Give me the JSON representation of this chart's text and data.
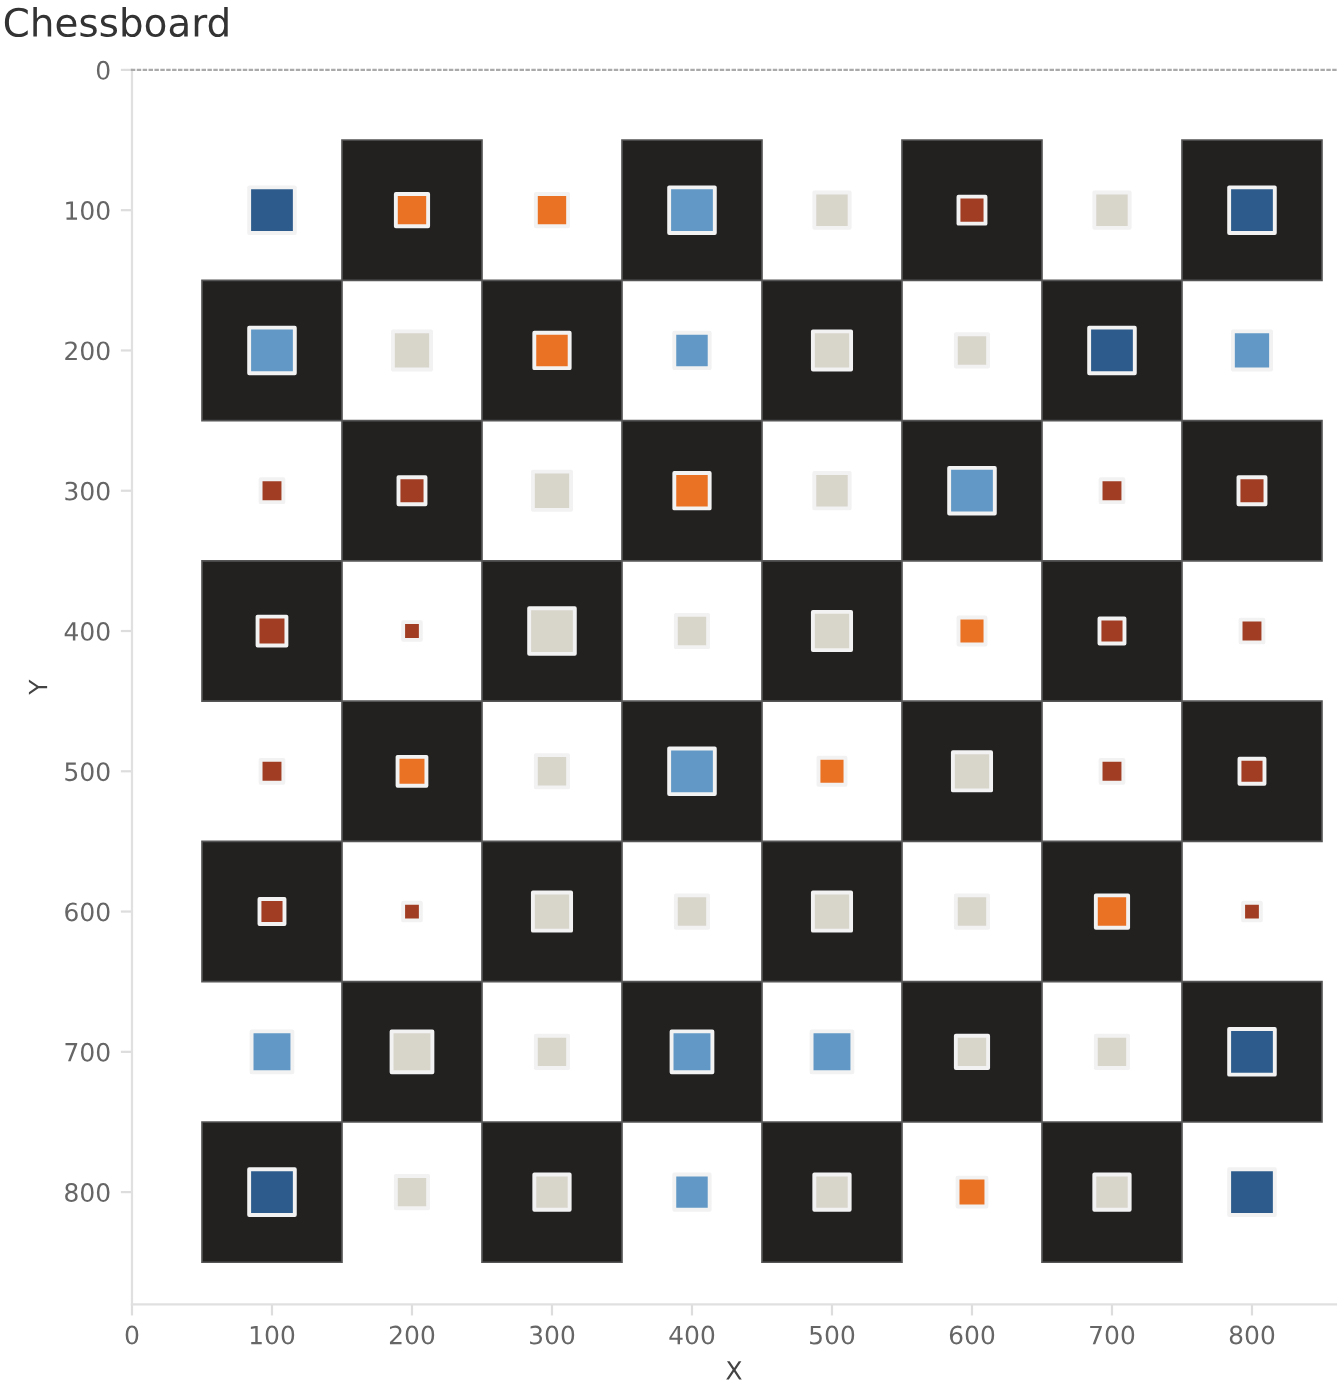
{
  "chart_data": {
    "type": "bubble",
    "title": "Chessboard",
    "xlabel": "X",
    "ylabel": "Y",
    "xlim": [
      0,
      860
    ],
    "ylim": [
      880,
      0
    ],
    "xticks": [
      0,
      100,
      200,
      300,
      400,
      500,
      600,
      700,
      800
    ],
    "yticks": [
      0,
      100,
      200,
      300,
      400,
      500,
      600,
      700,
      800
    ],
    "grid": false,
    "legend": false,
    "marker": "square",
    "series": [
      {
        "color": "#2c5b8c",
        "x": [
          100,
          800,
          700,
          800,
          100,
          800
        ],
        "values": [
          100,
          100,
          200,
          700,
          800,
          800
        ],
        "sizes": [
          1,
          1,
          1,
          1,
          1,
          1
        ]
      },
      {
        "color": "#6198c6",
        "x": [
          400,
          100,
          400,
          800,
          600,
          400,
          100,
          400,
          500,
          400
        ],
        "values": [
          100,
          200,
          200,
          200,
          300,
          500,
          700,
          700,
          700,
          800
        ],
        "sizes": [
          1,
          1,
          0.6,
          0.7,
          1,
          1,
          0.8,
          0.8,
          0.8,
          0.6
        ]
      },
      {
        "color": "#d8d5cb",
        "x": [
          500,
          700,
          200,
          500,
          600,
          300,
          500,
          300,
          400,
          500,
          300,
          600,
          300,
          400,
          500,
          600,
          200,
          300,
          600,
          700,
          200,
          300,
          500,
          700
        ],
        "values": [
          100,
          100,
          200,
          200,
          200,
          300,
          300,
          400,
          400,
          400,
          500,
          500,
          600,
          600,
          600,
          600,
          700,
          700,
          700,
          700,
          800,
          800,
          800,
          800
        ],
        "sizes": [
          0.6,
          0.6,
          0.7,
          0.7,
          0.5,
          0.7,
          0.6,
          1,
          0.5,
          0.7,
          0.5,
          0.7,
          0.7,
          0.5,
          0.7,
          0.5,
          0.8,
          0.5,
          0.5,
          0.5,
          0.5,
          0.6,
          0.6,
          0.6
        ]
      },
      {
        "color": "#ea7225",
        "x": [
          200,
          300,
          300,
          400,
          600,
          200,
          500,
          700,
          600
        ],
        "values": [
          100,
          100,
          200,
          300,
          400,
          500,
          500,
          600,
          800
        ],
        "sizes": [
          0.5,
          0.5,
          0.6,
          0.6,
          0.35,
          0.4,
          0.35,
          0.5,
          0.4
        ]
      },
      {
        "color": "#a13d23",
        "x": [
          600,
          100,
          200,
          700,
          800,
          100,
          200,
          700,
          800,
          100,
          700,
          800,
          100,
          200,
          800
        ],
        "values": [
          100,
          300,
          300,
          300,
          300,
          400,
          400,
          400,
          400,
          500,
          500,
          500,
          600,
          600,
          600
        ],
        "sizes": [
          0.35,
          0.25,
          0.35,
          0.25,
          0.35,
          0.4,
          0.15,
          0.3,
          0.25,
          0.25,
          0.25,
          0.3,
          0.3,
          0.15,
          0.15
        ]
      }
    ]
  }
}
